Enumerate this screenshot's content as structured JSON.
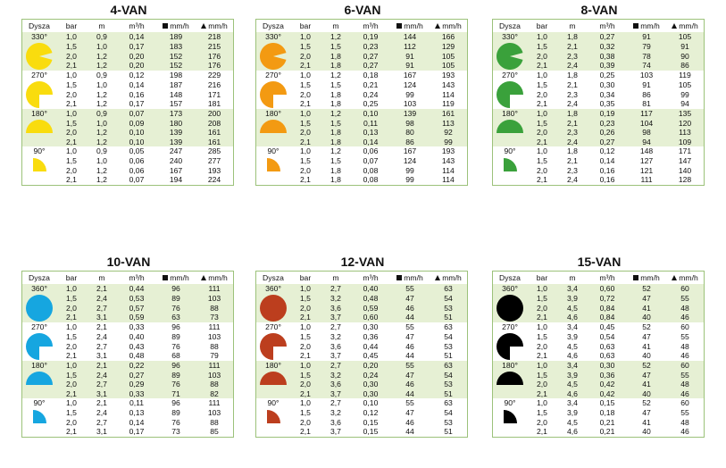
{
  "headers": {
    "nozzle": "Dysza",
    "bar": "bar",
    "m": "m",
    "flow": "m³/h",
    "sq": "mm/h",
    "tri": "mm/h"
  },
  "tables": [
    {
      "title": "4-VAN",
      "color": "#f9dc0e",
      "groups": [
        {
          "deg": "330°",
          "angle": 330,
          "rows": [
            [
              "1,0",
              "0,9",
              "0,14",
              "189",
              "218"
            ],
            [
              "1,5",
              "1,0",
              "0,17",
              "183",
              "215"
            ],
            [
              "2,0",
              "1,2",
              "0,20",
              "152",
              "176"
            ],
            [
              "2,1",
              "1,2",
              "0,20",
              "152",
              "176"
            ]
          ]
        },
        {
          "deg": "270°",
          "angle": 270,
          "rows": [
            [
              "1,0",
              "0,9",
              "0,12",
              "198",
              "229"
            ],
            [
              "1,5",
              "1,0",
              "0,14",
              "187",
              "216"
            ],
            [
              "2,0",
              "1,2",
              "0,16",
              "148",
              "171"
            ],
            [
              "2,1",
              "1,2",
              "0,17",
              "157",
              "181"
            ]
          ]
        },
        {
          "deg": "180°",
          "angle": 180,
          "rows": [
            [
              "1,0",
              "0,9",
              "0,07",
              "173",
              "200"
            ],
            [
              "1,5",
              "1,0",
              "0,09",
              "180",
              "208"
            ],
            [
              "2,0",
              "1,2",
              "0,10",
              "139",
              "161"
            ],
            [
              "2,1",
              "1,2",
              "0,10",
              "139",
              "161"
            ]
          ]
        },
        {
          "deg": "90°",
          "angle": 90,
          "rows": [
            [
              "1,0",
              "0,9",
              "0,05",
              "247",
              "285"
            ],
            [
              "1,5",
              "1,0",
              "0,06",
              "240",
              "277"
            ],
            [
              "2,0",
              "1,2",
              "0,06",
              "167",
              "193"
            ],
            [
              "2,1",
              "1,2",
              "0,07",
              "194",
              "224"
            ]
          ]
        }
      ]
    },
    {
      "title": "6-VAN",
      "color": "#f39a12",
      "groups": [
        {
          "deg": "330°",
          "angle": 330,
          "rows": [
            [
              "1,0",
              "1,2",
              "0,19",
              "144",
              "166"
            ],
            [
              "1,5",
              "1,5",
              "0,23",
              "112",
              "129"
            ],
            [
              "2,0",
              "1,8",
              "0,27",
              "91",
              "105"
            ],
            [
              "2,1",
              "1,8",
              "0,27",
              "91",
              "105"
            ]
          ]
        },
        {
          "deg": "270°",
          "angle": 270,
          "rows": [
            [
              "1,0",
              "1,2",
              "0,18",
              "167",
              "193"
            ],
            [
              "1,5",
              "1,5",
              "0,21",
              "124",
              "143"
            ],
            [
              "2,0",
              "1,8",
              "0,24",
              "99",
              "114"
            ],
            [
              "2,1",
              "1,8",
              "0,25",
              "103",
              "119"
            ]
          ]
        },
        {
          "deg": "180°",
          "angle": 180,
          "rows": [
            [
              "1,0",
              "1,2",
              "0,10",
              "139",
              "161"
            ],
            [
              "1,5",
              "1,5",
              "0,11",
              "98",
              "113"
            ],
            [
              "2,0",
              "1,8",
              "0,13",
              "80",
              "92"
            ],
            [
              "2,1",
              "1,8",
              "0,14",
              "86",
              "99"
            ]
          ]
        },
        {
          "deg": "90°",
          "angle": 90,
          "rows": [
            [
              "1,0",
              "1,2",
              "0,06",
              "167",
              "193"
            ],
            [
              "1,5",
              "1,5",
              "0,07",
              "124",
              "143"
            ],
            [
              "2,0",
              "1,8",
              "0,08",
              "99",
              "114"
            ],
            [
              "2,1",
              "1,8",
              "0,08",
              "99",
              "114"
            ]
          ]
        }
      ]
    },
    {
      "title": "8-VAN",
      "color": "#3aa13b",
      "groups": [
        {
          "deg": "330°",
          "angle": 330,
          "rows": [
            [
              "1,0",
              "1,8",
              "0,27",
              "91",
              "105"
            ],
            [
              "1,5",
              "2,1",
              "0,32",
              "79",
              "91"
            ],
            [
              "2,0",
              "2,3",
              "0,38",
              "78",
              "90"
            ],
            [
              "2,1",
              "2,4",
              "0,39",
              "74",
              "86"
            ]
          ]
        },
        {
          "deg": "270°",
          "angle": 270,
          "rows": [
            [
              "1,0",
              "1,8",
              "0,25",
              "103",
              "119"
            ],
            [
              "1,5",
              "2,1",
              "0,30",
              "91",
              "105"
            ],
            [
              "2,0",
              "2,3",
              "0,34",
              "86",
              "99"
            ],
            [
              "2,1",
              "2,4",
              "0,35",
              "81",
              "94"
            ]
          ]
        },
        {
          "deg": "180°",
          "angle": 180,
          "rows": [
            [
              "1,0",
              "1,8",
              "0,19",
              "117",
              "135"
            ],
            [
              "1,5",
              "2,1",
              "0,23",
              "104",
              "120"
            ],
            [
              "2,0",
              "2,3",
              "0,26",
              "98",
              "113"
            ],
            [
              "2,1",
              "2,4",
              "0,27",
              "94",
              "109"
            ]
          ]
        },
        {
          "deg": "90°",
          "angle": 90,
          "rows": [
            [
              "1,0",
              "1,8",
              "0,12",
              "148",
              "171"
            ],
            [
              "1,5",
              "2,1",
              "0,14",
              "127",
              "147"
            ],
            [
              "2,0",
              "2,3",
              "0,16",
              "121",
              "140"
            ],
            [
              "2,1",
              "2,4",
              "0,16",
              "111",
              "128"
            ]
          ]
        }
      ]
    },
    {
      "title": "10-VAN",
      "color": "#16a6e0",
      "groups": [
        {
          "deg": "360°",
          "angle": 360,
          "rows": [
            [
              "1,0",
              "2,1",
              "0,44",
              "96",
              "111"
            ],
            [
              "1,5",
              "2,4",
              "0,53",
              "89",
              "103"
            ],
            [
              "2,0",
              "2,7",
              "0,57",
              "76",
              "88"
            ],
            [
              "2,1",
              "3,1",
              "0,59",
              "63",
              "73"
            ]
          ]
        },
        {
          "deg": "270°",
          "angle": 270,
          "rows": [
            [
              "1,0",
              "2,1",
              "0,33",
              "96",
              "111"
            ],
            [
              "1,5",
              "2,4",
              "0,40",
              "89",
              "103"
            ],
            [
              "2,0",
              "2,7",
              "0,43",
              "76",
              "88"
            ],
            [
              "2,1",
              "3,1",
              "0,48",
              "68",
              "79"
            ]
          ]
        },
        {
          "deg": "180°",
          "angle": 180,
          "rows": [
            [
              "1,0",
              "2,1",
              "0,22",
              "96",
              "111"
            ],
            [
              "1,5",
              "2,4",
              "0,27",
              "89",
              "103"
            ],
            [
              "2,0",
              "2,7",
              "0,29",
              "76",
              "88"
            ],
            [
              "2,1",
              "3,1",
              "0,33",
              "71",
              "82"
            ]
          ]
        },
        {
          "deg": "90°",
          "angle": 90,
          "rows": [
            [
              "1,0",
              "2,1",
              "0,11",
              "96",
              "111"
            ],
            [
              "1,5",
              "2,4",
              "0,13",
              "89",
              "103"
            ],
            [
              "2,0",
              "2,7",
              "0,14",
              "76",
              "88"
            ],
            [
              "2,1",
              "3,1",
              "0,17",
              "73",
              "85"
            ]
          ]
        }
      ]
    },
    {
      "title": "12-VAN",
      "color": "#bc3e1e",
      "groups": [
        {
          "deg": "360°",
          "angle": 360,
          "rows": [
            [
              "1,0",
              "2,7",
              "0,40",
              "55",
              "63"
            ],
            [
              "1,5",
              "3,2",
              "0,48",
              "47",
              "54"
            ],
            [
              "2,0",
              "3,6",
              "0,59",
              "46",
              "53"
            ],
            [
              "2,1",
              "3,7",
              "0,60",
              "44",
              "51"
            ]
          ]
        },
        {
          "deg": "270°",
          "angle": 270,
          "rows": [
            [
              "1,0",
              "2,7",
              "0,30",
              "55",
              "63"
            ],
            [
              "1,5",
              "3,2",
              "0,36",
              "47",
              "54"
            ],
            [
              "2,0",
              "3,6",
              "0,44",
              "46",
              "53"
            ],
            [
              "2,1",
              "3,7",
              "0,45",
              "44",
              "51"
            ]
          ]
        },
        {
          "deg": "180°",
          "angle": 180,
          "rows": [
            [
              "1,0",
              "2,7",
              "0,20",
              "55",
              "63"
            ],
            [
              "1,5",
              "3,2",
              "0,24",
              "47",
              "54"
            ],
            [
              "2,0",
              "3,6",
              "0,30",
              "46",
              "53"
            ],
            [
              "2,1",
              "3,7",
              "0,30",
              "44",
              "51"
            ]
          ]
        },
        {
          "deg": "90°",
          "angle": 90,
          "rows": [
            [
              "1,0",
              "2,7",
              "0,10",
              "55",
              "63"
            ],
            [
              "1,5",
              "3,2",
              "0,12",
              "47",
              "54"
            ],
            [
              "2,0",
              "3,6",
              "0,15",
              "46",
              "53"
            ],
            [
              "2,1",
              "3,7",
              "0,15",
              "44",
              "51"
            ]
          ]
        }
      ]
    },
    {
      "title": "15-VAN",
      "color": "#000000",
      "groups": [
        {
          "deg": "360°",
          "angle": 360,
          "rows": [
            [
              "1,0",
              "3,4",
              "0,60",
              "52",
              "60"
            ],
            [
              "1,5",
              "3,9",
              "0,72",
              "47",
              "55"
            ],
            [
              "2,0",
              "4,5",
              "0,84",
              "41",
              "48"
            ],
            [
              "2,1",
              "4,6",
              "0,84",
              "40",
              "46"
            ]
          ]
        },
        {
          "deg": "270°",
          "angle": 270,
          "rows": [
            [
              "1,0",
              "3,4",
              "0,45",
              "52",
              "60"
            ],
            [
              "1,5",
              "3,9",
              "0,54",
              "47",
              "55"
            ],
            [
              "2,0",
              "4,5",
              "0,63",
              "41",
              "48"
            ],
            [
              "2,1",
              "4,6",
              "0,63",
              "40",
              "46"
            ]
          ]
        },
        {
          "deg": "180°",
          "angle": 180,
          "rows": [
            [
              "1,0",
              "3,4",
              "0,30",
              "52",
              "60"
            ],
            [
              "1,5",
              "3,9",
              "0,36",
              "47",
              "55"
            ],
            [
              "2,0",
              "4,5",
              "0,42",
              "41",
              "48"
            ],
            [
              "2,1",
              "4,6",
              "0,42",
              "40",
              "46"
            ]
          ]
        },
        {
          "deg": "90°",
          "angle": 90,
          "rows": [
            [
              "1,0",
              "3,4",
              "0,15",
              "52",
              "60"
            ],
            [
              "1,5",
              "3,9",
              "0,18",
              "47",
              "55"
            ],
            [
              "2,0",
              "4,5",
              "0,21",
              "41",
              "48"
            ],
            [
              "2,1",
              "4,6",
              "0,21",
              "40",
              "46"
            ]
          ]
        }
      ]
    }
  ]
}
